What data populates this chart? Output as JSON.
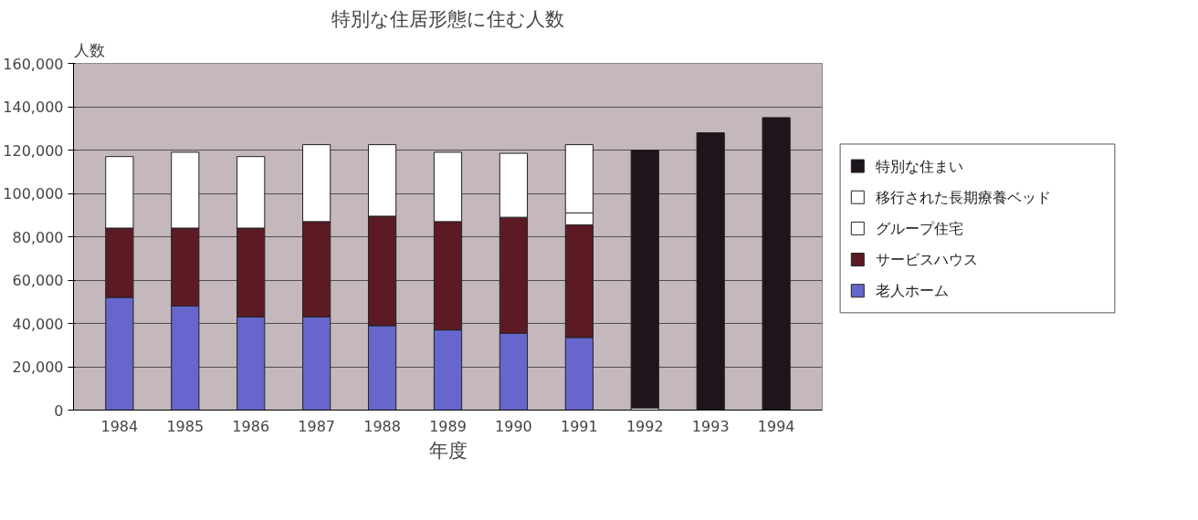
{
  "chart_data": {
    "type": "bar",
    "stacked": true,
    "title": "特別な住居形態に住む人数",
    "xlabel": "年度",
    "ylabel": "人数",
    "categories": [
      "1984",
      "1985",
      "1986",
      "1987",
      "1988",
      "1989",
      "1990",
      "1991",
      "1992",
      "1993",
      "1994"
    ],
    "series": [
      {
        "name": "老人ホーム",
        "color": "#6666cc",
        "values": [
          52000,
          48000,
          43000,
          43000,
          39000,
          37000,
          35500,
          33500,
          null,
          null,
          null
        ]
      },
      {
        "name": "サービスハウス",
        "color": "#5c1a24",
        "values": [
          32000,
          36000,
          41000,
          44000,
          50500,
          50000,
          53500,
          52000,
          null,
          null,
          null
        ]
      },
      {
        "name": "グループ住宅",
        "color": "#ffffff",
        "values": [
          null,
          null,
          null,
          null,
          null,
          null,
          null,
          5500,
          1000,
          null,
          null
        ]
      },
      {
        "name": "移行された長期療養ベッド",
        "color": "#ffffff",
        "values": [
          33000,
          35000,
          33000,
          35500,
          33000,
          32000,
          29500,
          31500,
          null,
          null,
          null
        ]
      },
      {
        "name": "特別な住まい",
        "color": "#1e141c",
        "values": [
          null,
          null,
          null,
          null,
          null,
          null,
          null,
          null,
          119000,
          128000,
          135000
        ]
      }
    ],
    "ylim": [
      0,
      160000
    ],
    "yticks": [
      0,
      {
        "value": 20000,
        "label": "20,000"
      },
      {
        "value": 40000,
        "label": "40,000"
      },
      {
        "value": 60000,
        "label": "60,000"
      },
      {
        "value": 80000,
        "label": "80,000"
      },
      {
        "value": 100000,
        "label": "100,000"
      },
      {
        "value": 120000,
        "label": "120,000"
      },
      {
        "value": 140000,
        "label": "140,000"
      },
      {
        "value": 160000,
        "label": "160,000"
      }
    ],
    "grid": "y",
    "legend": "right"
  }
}
